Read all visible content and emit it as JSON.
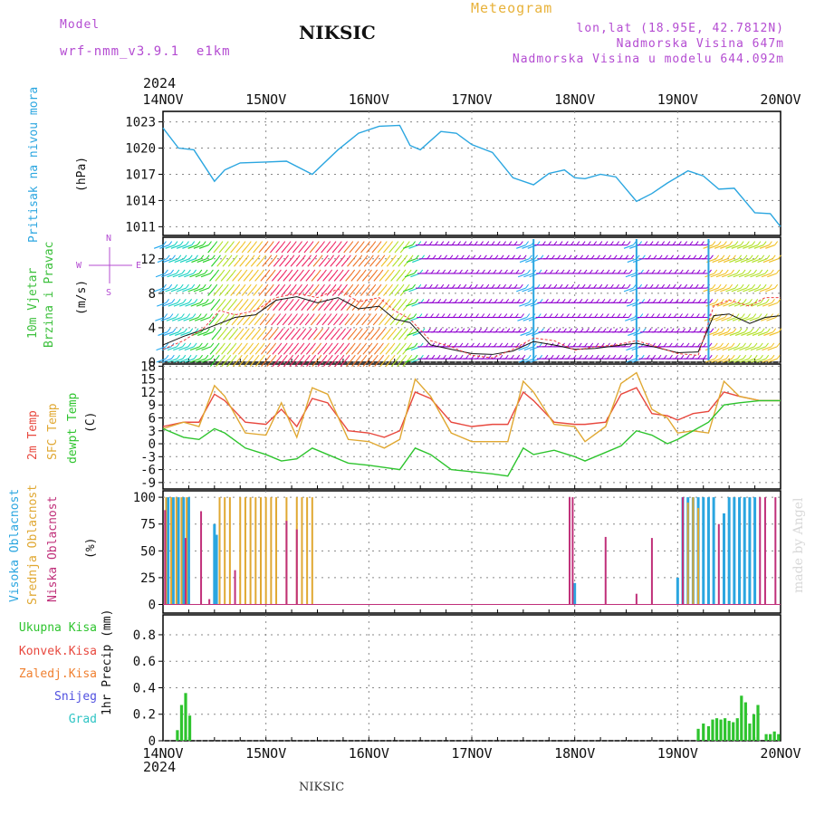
{
  "header": {
    "model_label": "Model",
    "model_name": "wrf-nmm_v3.9.1  e1km",
    "station": "NIKSIC",
    "product": "Meteogram",
    "coords": "lon,lat (18.95E, 42.7812N)",
    "elevation": "Nadmorska Visina 647m",
    "model_elevation": "Nadmorska Visina u modelu 644.092m",
    "year": "2024",
    "footer_station": "NIKSIC",
    "credit": "made by Angel"
  },
  "x_axis": {
    "ticks": [
      "14NOV",
      "15NOV",
      "16NOV",
      "17NOV",
      "18NOV",
      "19NOV",
      "20NOV"
    ],
    "year": "2024"
  },
  "panels": {
    "pressure": {
      "label": "Pritisak na nivou mora",
      "unit": "(hPa)",
      "ticks": [
        "1011",
        "1014",
        "1017",
        "1020",
        "1023"
      ],
      "color": "#2ba6e0"
    },
    "wind": {
      "label_line1": "10m Vjetar",
      "label_line2": "Brzina i Pravac",
      "unit": "(m/s)",
      "ticks": [
        "0",
        "4",
        "8",
        "12"
      ],
      "compass_n": "N",
      "compass_w": "W",
      "compass_e": "E",
      "compass_s": "S",
      "label_color": "#3cc03c",
      "compass_color": "#b44cd2"
    },
    "temperature": {
      "label_1": "2m Temp",
      "label_2": "SFC Temp",
      "label_3": "dewpt Temp",
      "unit": "(C)",
      "ticks": [
        "-9",
        "-6",
        "-3",
        "0",
        "3",
        "6",
        "9",
        "12",
        "15",
        "18"
      ],
      "colors": [
        "#e8483e",
        "#e0a832",
        "#2ec42e"
      ]
    },
    "clouds": {
      "label_1": "Visoka Oblacnost",
      "label_2": "Srednja Oblacnost",
      "label_3": "Niska Oblacnost",
      "unit": "(%)",
      "ticks": [
        "0",
        "25",
        "50",
        "75",
        "100"
      ],
      "colors": [
        "#2ba6e0",
        "#e0a832",
        "#c0307a"
      ]
    },
    "precip": {
      "legend": [
        "Ukupna Kisa",
        "Konvek.Kisa",
        "Zaledj.Kisa",
        "Snijeg",
        "Grad"
      ],
      "legend_colors": [
        "#2ec42e",
        "#e8483e",
        "#f08030",
        "#5050e0",
        "#2ec4c4"
      ],
      "unit": "1hr Precip (mm)",
      "ticks": [
        "0",
        "0.2",
        "0.4",
        "0.6",
        "0.8"
      ]
    }
  },
  "chart_data": [
    {
      "type": "line",
      "title": "Pritisak na nivou mora",
      "ylabel": "(hPa)",
      "ylim": [
        1010,
        1024.2
      ],
      "x_unit": "days since 14NOV 00",
      "x": [
        0,
        0.15,
        0.3,
        0.5,
        0.6,
        0.75,
        1.0,
        1.2,
        1.45,
        1.7,
        1.9,
        2.1,
        2.3,
        2.4,
        2.5,
        2.7,
        2.85,
        3.0,
        3.2,
        3.4,
        3.6,
        3.75,
        3.9,
        4.0,
        4.1,
        4.25,
        4.4,
        4.6,
        4.75,
        4.9,
        5.1,
        5.25,
        5.4,
        5.55,
        5.75,
        5.9,
        6.0
      ],
      "series": [
        {
          "name": "Pritisak",
          "values": [
            1022.3,
            1020,
            1019.8,
            1016.2,
            1017.5,
            1018.3,
            1018.4,
            1018.5,
            1017,
            1019.8,
            1021.7,
            1022.5,
            1022.6,
            1020.3,
            1019.8,
            1021.9,
            1021.7,
            1020.4,
            1019.5,
            1016.6,
            1015.8,
            1017.1,
            1017.5,
            1016.6,
            1016.5,
            1017,
            1016.7,
            1013.9,
            1014.8,
            1016,
            1017.4,
            1016.8,
            1015.3,
            1015.4,
            1012.6,
            1012.5,
            1011
          ]
        }
      ],
      "grid": true
    },
    {
      "type": "line",
      "title": "10m Vjetar Brzina i Pravac",
      "ylabel": "(m/s)",
      "ylim": [
        0,
        14.5
      ],
      "x_unit": "days since 14NOV 00",
      "x": [
        0,
        0.2,
        0.4,
        0.55,
        0.7,
        0.9,
        1.1,
        1.3,
        1.5,
        1.7,
        1.9,
        2.1,
        2.25,
        2.4,
        2.6,
        2.8,
        3.0,
        3.2,
        3.4,
        3.6,
        3.8,
        4.0,
        4.2,
        4.4,
        4.6,
        4.8,
        5.0,
        5.2,
        5.35,
        5.5,
        5.7,
        5.85,
        6.0
      ],
      "series": [
        {
          "name": "wind speed",
          "values": [
            2,
            3,
            3.8,
            4.5,
            5.2,
            5.5,
            7.2,
            7.6,
            6.9,
            7.5,
            6.2,
            6.5,
            5,
            4.6,
            2,
            1.5,
            1,
            0.9,
            1.3,
            2.4,
            2,
            1.5,
            1.6,
            1.9,
            2.2,
            1.7,
            1.1,
            1.2,
            5.4,
            5.6,
            4.5,
            5.2,
            5.4
          ]
        },
        {
          "name": "gust",
          "values": [
            1.5,
            2.5,
            4,
            6,
            5.5,
            6,
            7.5,
            8,
            7.5,
            8.5,
            7,
            7.5,
            6,
            5,
            2.5,
            1.8,
            0.8,
            0.5,
            1.5,
            2.8,
            2.5,
            1.4,
            1.8,
            2,
            2.5,
            1.8,
            1,
            0.8,
            6.5,
            7.2,
            6.5,
            7.5,
            7.5
          ]
        }
      ],
      "grid": true
    },
    {
      "type": "line",
      "title": "Temp",
      "ylabel": "(C)",
      "ylim": [
        -10.5,
        18.5
      ],
      "x_unit": "days since 14NOV 00",
      "x": [
        0,
        0.2,
        0.35,
        0.5,
        0.6,
        0.8,
        1.0,
        1.15,
        1.3,
        1.45,
        1.6,
        1.8,
        2.0,
        2.15,
        2.3,
        2.45,
        2.6,
        2.8,
        3.0,
        3.2,
        3.35,
        3.5,
        3.6,
        3.8,
        4.0,
        4.1,
        4.3,
        4.45,
        4.6,
        4.75,
        4.9,
        5.0,
        5.15,
        5.3,
        5.45,
        5.6,
        5.8,
        6.0
      ],
      "series": [
        {
          "name": "2m Temp",
          "values": [
            4,
            5,
            5,
            11.5,
            10,
            5,
            4.5,
            8,
            4,
            10.5,
            9.5,
            3,
            2.5,
            1.5,
            3,
            12,
            10.5,
            5,
            4,
            4.5,
            4.5,
            12,
            10,
            5,
            4.5,
            4.5,
            5,
            11.5,
            13,
            7,
            6.5,
            5.5,
            7,
            7.5,
            12,
            11,
            10,
            10
          ]
        },
        {
          "name": "SFC Temp",
          "values": [
            3.5,
            5,
            4,
            13.5,
            11,
            2.5,
            2,
            9.5,
            1.5,
            13,
            11.5,
            1,
            0.5,
            -1,
            1,
            15,
            11,
            2.5,
            0.5,
            0.5,
            0.5,
            14.5,
            12,
            4.5,
            4,
            0.5,
            4,
            14,
            16.5,
            8,
            6,
            2.5,
            3,
            2.5,
            14.5,
            11,
            10,
            10
          ]
        },
        {
          "name": "dewpt Temp",
          "values": [
            3.5,
            1.5,
            1,
            3.5,
            2.5,
            -1,
            -2.5,
            -4,
            -3.5,
            -1,
            -2.5,
            -4.5,
            -5,
            -5.5,
            -6,
            -1,
            -2.5,
            -6,
            -6.5,
            -7,
            -7.5,
            -1,
            -2.5,
            -1.5,
            -3,
            -4,
            -2,
            -0.5,
            3,
            2,
            0,
            1,
            3,
            5,
            9,
            9.5,
            10,
            10
          ]
        }
      ],
      "grid": true
    },
    {
      "type": "bar",
      "title": "Oblacnost",
      "ylabel": "(%)",
      "ylim": [
        0,
        100
      ],
      "x_unit": "days since 14NOV 00",
      "series": [
        {
          "name": "Visoka Oblacnost",
          "x": [
            0.05,
            0.1,
            0.15,
            0.2,
            0.25,
            0.5,
            0.52,
            4.0,
            5.0,
            5.05,
            5.1,
            5.15,
            5.2,
            5.25,
            5.3,
            5.35,
            5.45,
            5.5,
            5.55,
            5.6,
            5.65,
            5.7,
            5.75
          ],
          "values": [
            100,
            100,
            100,
            100,
            100,
            75,
            65,
            20,
            25,
            100,
            100,
            100,
            100,
            100,
            100,
            100,
            85,
            100,
            100,
            100,
            100,
            100,
            100
          ]
        },
        {
          "name": "Srednja Oblacnost",
          "x": [
            0.03,
            0.08,
            0.13,
            0.18,
            0.23,
            0.55,
            0.6,
            0.65,
            0.75,
            0.8,
            0.85,
            0.9,
            0.95,
            1.0,
            1.05,
            1.1,
            1.2,
            1.3,
            1.35,
            1.4,
            1.45,
            5.1,
            5.15,
            5.2
          ],
          "values": [
            100,
            100,
            100,
            100,
            100,
            100,
            100,
            100,
            100,
            100,
            100,
            100,
            100,
            100,
            100,
            100,
            100,
            100,
            100,
            100,
            100,
            95,
            100,
            90
          ]
        },
        {
          "name": "Niska Oblacnost",
          "x": [
            0.02,
            0.22,
            0.37,
            0.45,
            0.7,
            1.2,
            1.3,
            3.95,
            3.98,
            4.3,
            4.6,
            4.75,
            5.05,
            5.4,
            5.8,
            5.85,
            5.95
          ],
          "values": [
            88,
            62,
            87,
            5,
            32,
            78,
            70,
            100,
            100,
            63,
            10,
            62,
            100,
            75,
            100,
            100,
            100
          ]
        }
      ],
      "grid": true
    },
    {
      "type": "bar",
      "title": "1hr Precip",
      "ylabel": "1hr Precip (mm)",
      "ylim": [
        0,
        0.95
      ],
      "x_unit": "days since 14NOV 00",
      "series": [
        {
          "name": "Ukupna Kisa",
          "x": [
            0.14,
            0.18,
            0.22,
            0.26,
            5.2,
            5.25,
            5.3,
            5.34,
            5.38,
            5.42,
            5.46,
            5.5,
            5.54,
            5.58,
            5.62,
            5.66,
            5.7,
            5.74,
            5.78,
            5.86,
            5.9,
            5.94,
            5.98
          ],
          "values": [
            0.08,
            0.27,
            0.36,
            0.19,
            0.09,
            0.13,
            0.11,
            0.16,
            0.17,
            0.16,
            0.17,
            0.15,
            0.14,
            0.17,
            0.34,
            0.29,
            0.13,
            0.2,
            0.27,
            0.05,
            0.05,
            0.07,
            0.05
          ]
        }
      ],
      "grid": true
    }
  ]
}
